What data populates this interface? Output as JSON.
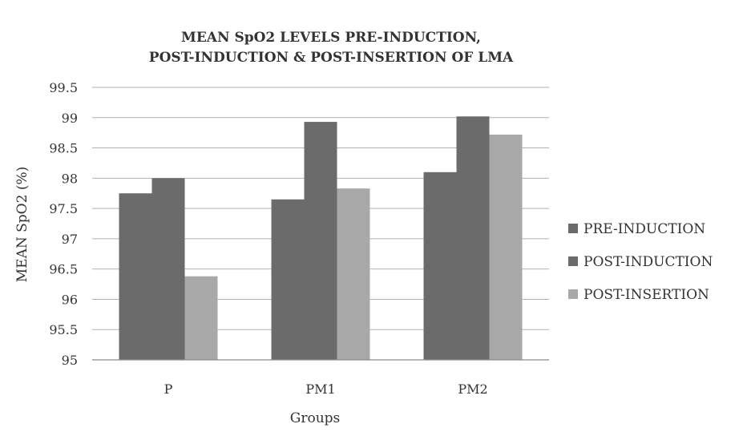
{
  "chart_data": {
    "type": "bar",
    "title_lines": [
      "MEAN SpO2 LEVELS PRE-INDUCTION,",
      "POST-INDUCTION & POST-INSERTION OF LMA"
    ],
    "xlabel": "Groups",
    "ylabel": "MEAN SpO2 (%)",
    "categories": [
      "P",
      "PM1",
      "PM2"
    ],
    "series": [
      {
        "name": "PRE-INDUCTION",
        "values": [
          97.75,
          97.65,
          98.1
        ],
        "color": "#6b6b6b"
      },
      {
        "name": "POST-INDUCTION",
        "values": [
          98.0,
          98.93,
          99.02
        ],
        "color": "#6b6b6b"
      },
      {
        "name": "POST-INSERTION",
        "values": [
          96.38,
          97.83,
          98.72
        ],
        "color": "#a8a8a8"
      }
    ],
    "ylim": [
      95,
      99.5
    ],
    "yticks": [
      "95",
      "95.5",
      "96",
      "96.5",
      "97",
      "97.5",
      "98",
      "98.5",
      "99",
      "99.5"
    ],
    "grid": true,
    "legend_position": "right"
  }
}
